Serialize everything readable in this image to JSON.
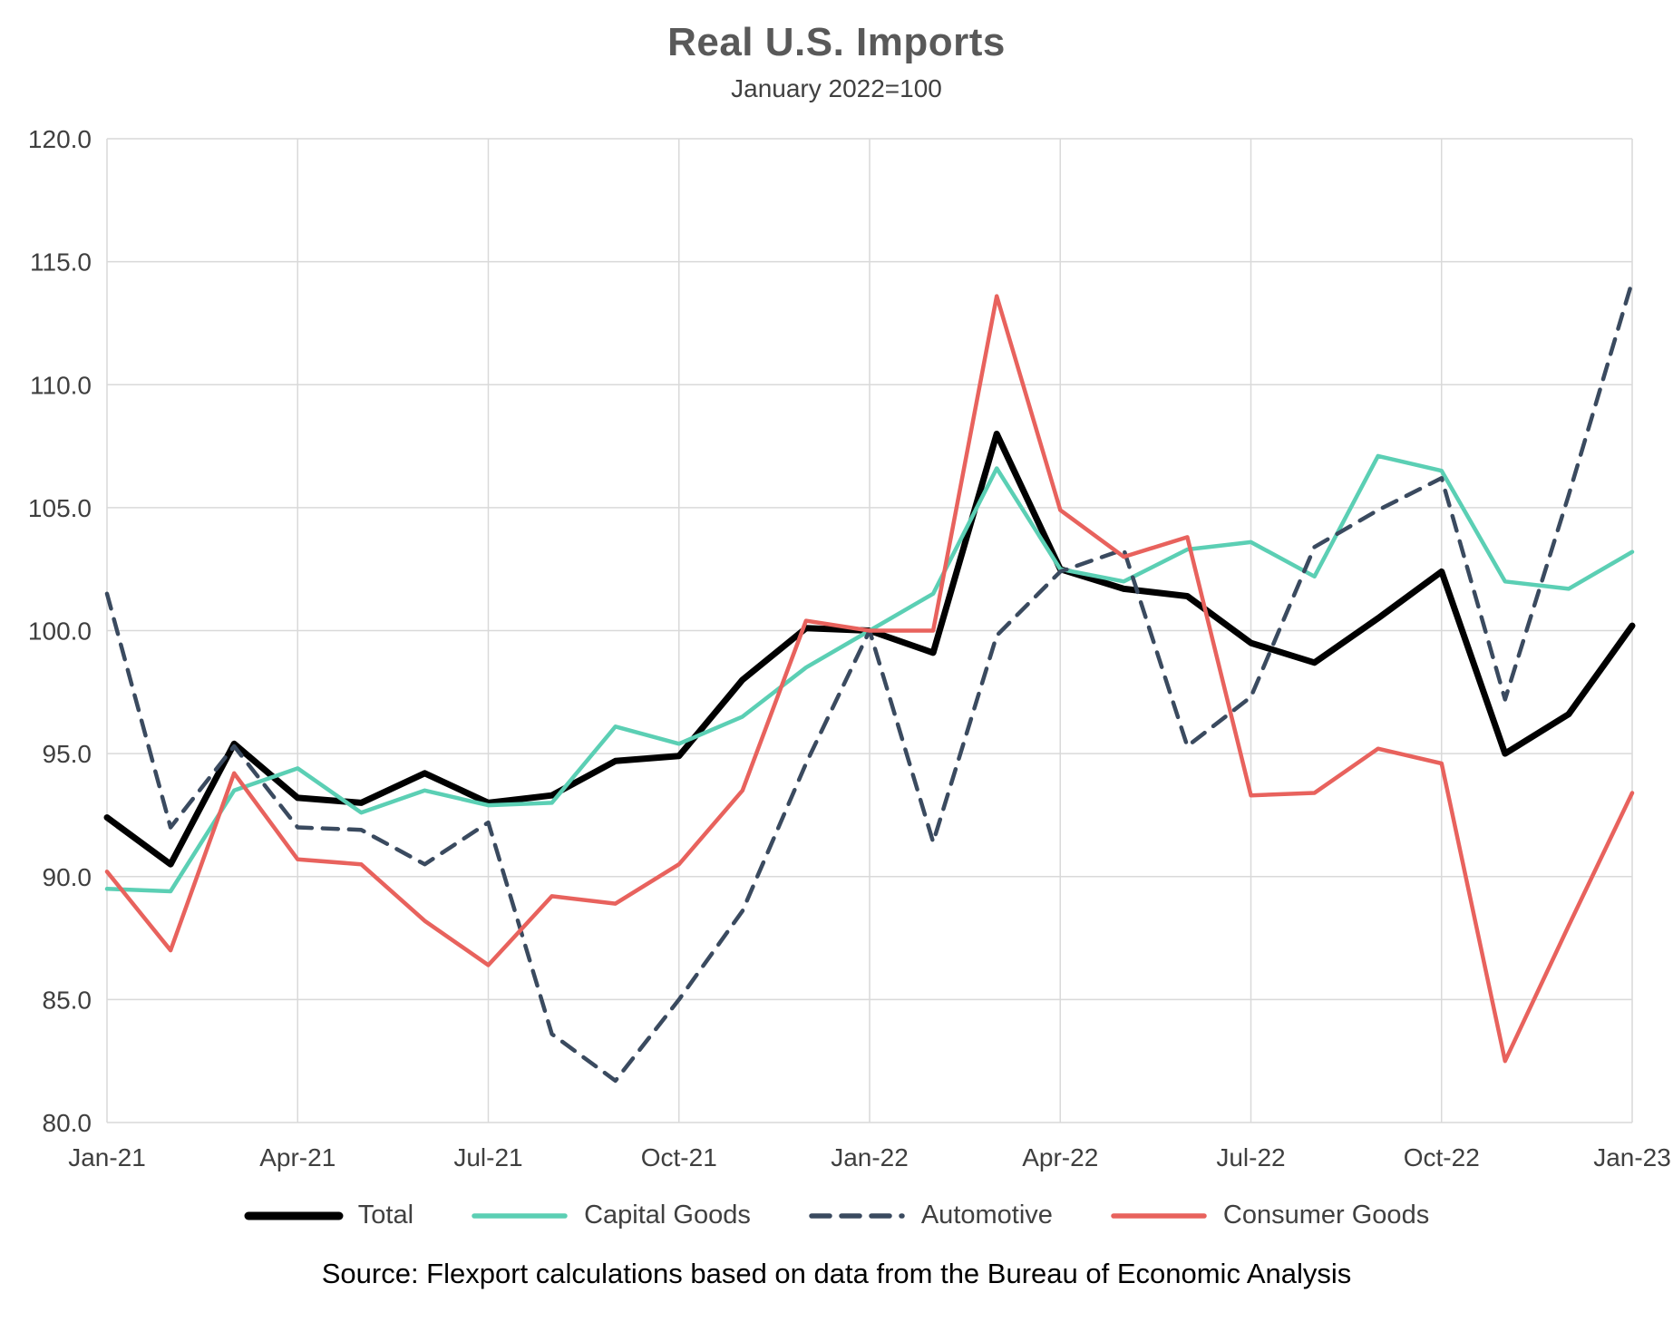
{
  "chart_data": {
    "type": "line",
    "title": "Real U.S. Imports",
    "subtitle": "January 2022=100",
    "xlabel": "",
    "ylabel": "",
    "ylim": [
      80.0,
      120.0
    ],
    "ytick_step": 5.0,
    "x_tick_every": 3,
    "grid": true,
    "legend_position": "bottom",
    "source": "Source: Flexport calculations based on data from the Bureau of Economic Analysis",
    "x": [
      "Jan-21",
      "Feb-21",
      "Mar-21",
      "Apr-21",
      "May-21",
      "Jun-21",
      "Jul-21",
      "Aug-21",
      "Sep-21",
      "Oct-21",
      "Nov-21",
      "Dec-21",
      "Jan-22",
      "Feb-22",
      "Mar-22",
      "Apr-22",
      "May-22",
      "Jun-22",
      "Jul-22",
      "Aug-22",
      "Sep-22",
      "Oct-22",
      "Nov-22",
      "Dec-22",
      "Jan-23"
    ],
    "x_tick_labels": [
      "Jan-21",
      "Apr-21",
      "Jul-21",
      "Oct-21",
      "Jan-22",
      "Apr-22",
      "Jul-22",
      "Oct-22",
      "Jan-23"
    ],
    "series": [
      {
        "name": "Total",
        "color": "#000000",
        "width": 7,
        "dash": null,
        "values": [
          92.4,
          90.5,
          95.4,
          93.2,
          93.0,
          94.2,
          93.0,
          93.3,
          94.7,
          94.9,
          98.0,
          100.1,
          100.0,
          99.1,
          108.0,
          102.5,
          101.7,
          101.4,
          99.5,
          98.7,
          100.5,
          102.4,
          95.0,
          96.6,
          100.2
        ]
      },
      {
        "name": "Capital Goods",
        "color": "#5BCFB4",
        "width": 4.5,
        "dash": null,
        "values": [
          89.5,
          89.4,
          93.5,
          94.4,
          92.6,
          93.5,
          92.9,
          93.0,
          96.1,
          95.4,
          96.5,
          98.5,
          100.0,
          101.5,
          106.6,
          102.5,
          102.0,
          103.3,
          103.6,
          102.2,
          107.1,
          106.5,
          102.0,
          101.7,
          103.2
        ]
      },
      {
        "name": "Automotive",
        "color": "#3A4A5F",
        "width": 4.5,
        "dash": "17 12",
        "values": [
          101.5,
          92.0,
          95.3,
          92.0,
          91.9,
          90.5,
          92.2,
          83.6,
          81.7,
          85.0,
          88.6,
          94.6,
          100.0,
          91.4,
          99.8,
          102.4,
          103.3,
          95.3,
          97.3,
          103.4,
          104.9,
          106.2,
          97.2,
          105.5,
          114.2
        ]
      },
      {
        "name": "Consumer Goods",
        "color": "#E8625D",
        "width": 4.5,
        "dash": null,
        "values": [
          90.2,
          87.0,
          94.2,
          90.7,
          90.5,
          88.2,
          86.4,
          89.2,
          88.9,
          90.5,
          93.5,
          100.4,
          100.0,
          100.0,
          113.6,
          104.9,
          103.0,
          103.8,
          93.3,
          93.4,
          95.2,
          94.6,
          82.5,
          88.0,
          93.4
        ]
      }
    ]
  },
  "colors": {
    "grid": "#D9D9D9",
    "axis_text": "#3F3F3F",
    "title_text": "#595959"
  }
}
